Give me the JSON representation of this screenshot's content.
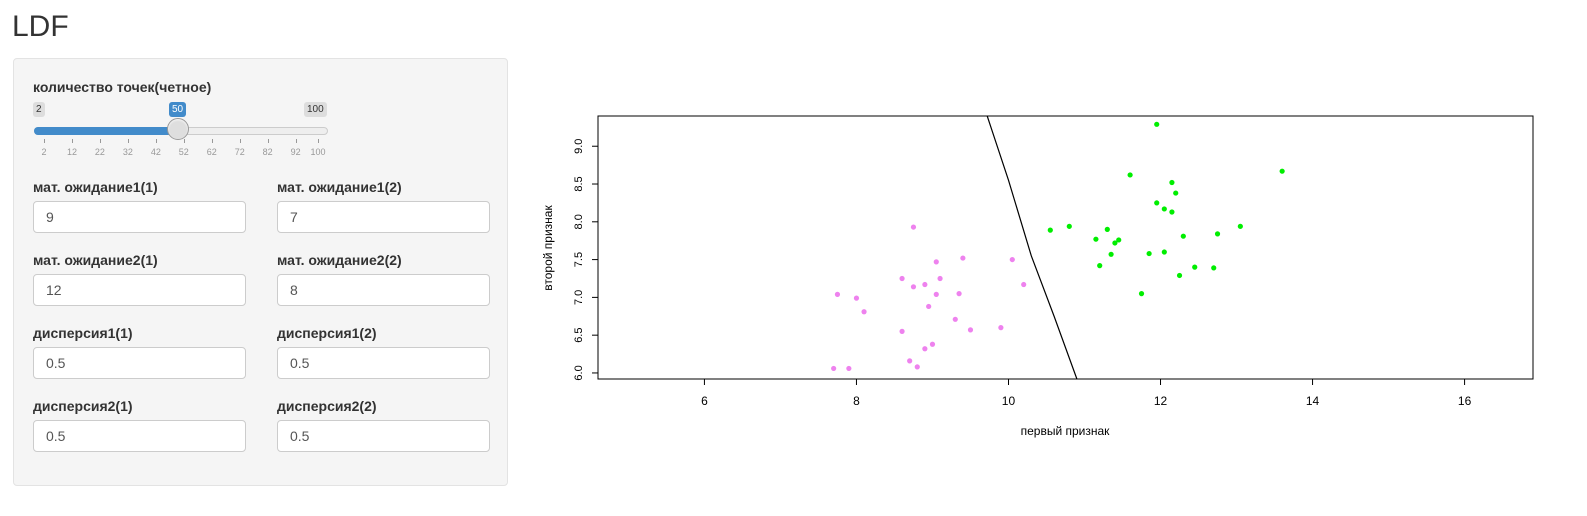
{
  "app": {
    "title": "LDF"
  },
  "slider": {
    "label": "количество точек(четное)",
    "min_label": "2",
    "max_label": "100",
    "value_label": "50",
    "value": 50,
    "min": 2,
    "max": 100,
    "ticks": [
      "2",
      "12",
      "22",
      "32",
      "42",
      "52",
      "62",
      "72",
      "82",
      "92",
      "100"
    ]
  },
  "inputs": [
    {
      "label": "мат. ожидание1(1)",
      "value": "9"
    },
    {
      "label": "мат. ожидание1(2)",
      "value": "7"
    },
    {
      "label": "мат. ожидание2(1)",
      "value": "12"
    },
    {
      "label": "мат. ожидание2(2)",
      "value": "8"
    },
    {
      "label": "дисперсия1(1)",
      "value": "0.5"
    },
    {
      "label": "дисперсия1(2)",
      "value": "0.5"
    },
    {
      "label": "дисперсия2(1)",
      "value": "0.5"
    },
    {
      "label": "дисперсия2(2)",
      "value": "0.5"
    }
  ],
  "colors": {
    "accent": "#428bca",
    "class1": "#ee82ee",
    "class2": "#00ee00"
  },
  "chart_data": {
    "type": "scatter",
    "xlabel": "первый признак",
    "ylabel": "второй признак",
    "xlim": [
      4.6,
      16.9
    ],
    "ylim": [
      5.92,
      9.4
    ],
    "xticks": [
      "6",
      "8",
      "10",
      "12",
      "14",
      "16"
    ],
    "yticks": [
      "6.0",
      "6.5",
      "7.0",
      "7.5",
      "8.0",
      "8.5",
      "9.0"
    ],
    "series": [
      {
        "color": "#ee82ee",
        "points": [
          [
            8.75,
            7.93
          ],
          [
            9.05,
            7.47
          ],
          [
            9.4,
            7.52
          ],
          [
            10.05,
            7.5
          ],
          [
            8.6,
            7.25
          ],
          [
            9.1,
            7.25
          ],
          [
            7.75,
            7.04
          ],
          [
            8.0,
            6.99
          ],
          [
            8.75,
            7.14
          ],
          [
            8.9,
            7.17
          ],
          [
            9.05,
            7.04
          ],
          [
            9.35,
            7.05
          ],
          [
            10.2,
            7.17
          ],
          [
            8.1,
            6.81
          ],
          [
            8.95,
            6.88
          ],
          [
            9.3,
            6.71
          ],
          [
            9.5,
            6.57
          ],
          [
            9.9,
            6.6
          ],
          [
            8.6,
            6.55
          ],
          [
            9.0,
            6.38
          ],
          [
            8.9,
            6.32
          ],
          [
            8.7,
            6.16
          ],
          [
            8.8,
            6.08
          ],
          [
            7.7,
            6.06
          ],
          [
            7.9,
            6.06
          ]
        ]
      },
      {
        "color": "#00ee00",
        "points": [
          [
            11.95,
            9.29
          ],
          [
            13.6,
            8.67
          ],
          [
            11.6,
            8.62
          ],
          [
            12.15,
            8.52
          ],
          [
            12.2,
            8.38
          ],
          [
            11.95,
            8.25
          ],
          [
            12.05,
            8.17
          ],
          [
            12.15,
            8.13
          ],
          [
            13.05,
            7.94
          ],
          [
            10.8,
            7.94
          ],
          [
            10.55,
            7.89
          ],
          [
            11.3,
            7.9
          ],
          [
            12.75,
            7.84
          ],
          [
            12.3,
            7.81
          ],
          [
            11.15,
            7.77
          ],
          [
            11.45,
            7.76
          ],
          [
            11.4,
            7.72
          ],
          [
            11.35,
            7.57
          ],
          [
            11.85,
            7.58
          ],
          [
            12.05,
            7.6
          ],
          [
            11.2,
            7.42
          ],
          [
            12.45,
            7.4
          ],
          [
            12.7,
            7.39
          ],
          [
            12.25,
            7.29
          ],
          [
            11.75,
            7.05
          ]
        ]
      }
    ],
    "boundary": [
      [
        9.72,
        9.4
      ],
      [
        10.0,
        8.55
      ],
      [
        10.3,
        7.55
      ],
      [
        10.6,
        6.75
      ],
      [
        10.9,
        5.92
      ]
    ]
  }
}
